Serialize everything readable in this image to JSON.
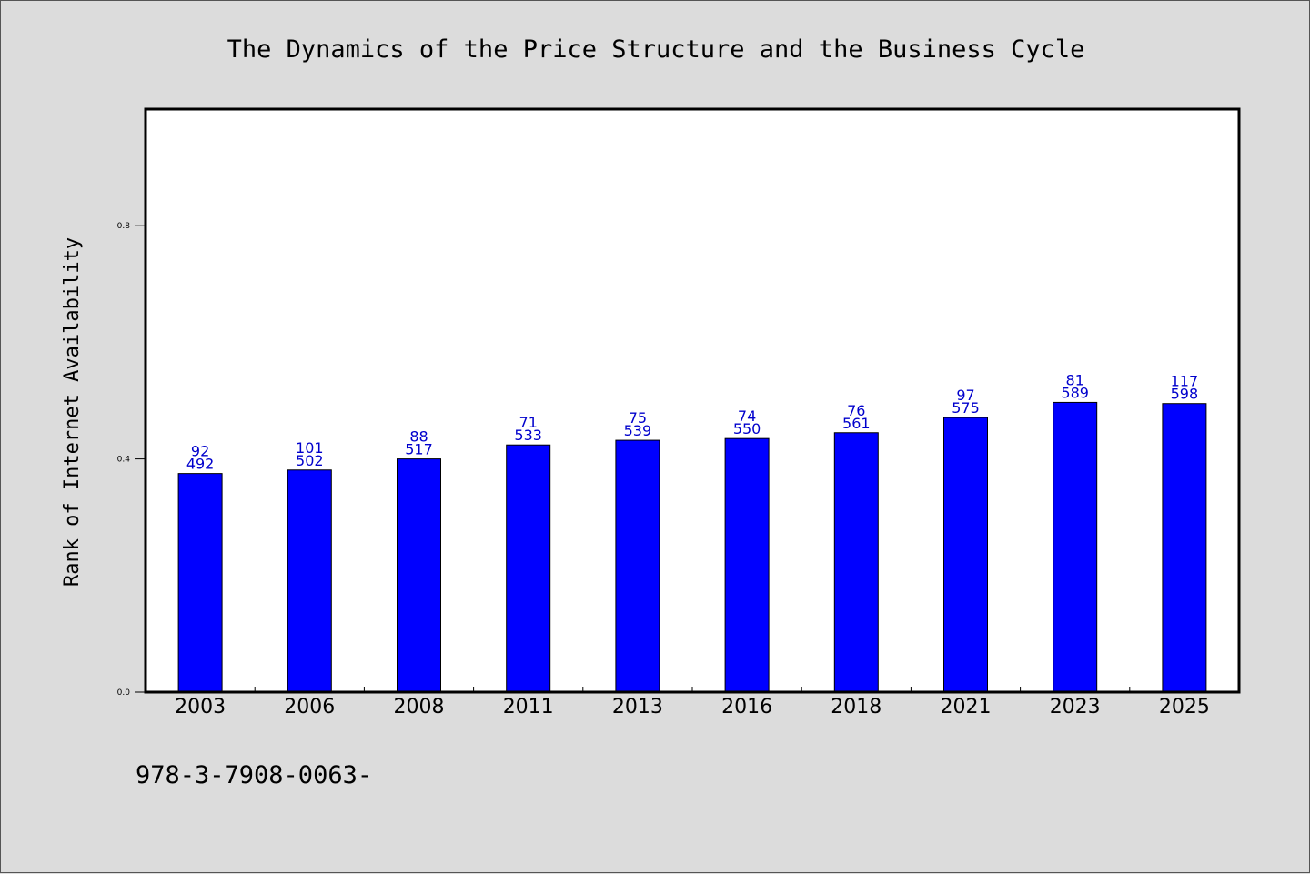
{
  "footer_code": "978-3-7908-0063-",
  "colors": {
    "bar": "#0000ff",
    "label": "#0000cc",
    "background": "#dcdcdc",
    "plot": "#ffffff"
  },
  "chart_data": {
    "type": "bar",
    "title": "The Dynamics of the Price Structure and the Business Cycle",
    "xlabel": "",
    "ylabel": "Rank of Internet Availability",
    "ylim": [
      0.0,
      1.0
    ],
    "yticks": [
      0.0,
      0.4,
      0.8
    ],
    "categories": [
      "2003",
      "2006",
      "2008",
      "2011",
      "2013",
      "2016",
      "2018",
      "2021",
      "2023",
      "2025"
    ],
    "values": [
      0.375,
      0.381,
      0.4,
      0.424,
      0.432,
      0.435,
      0.445,
      0.471,
      0.497,
      0.495
    ],
    "labels_top": [
      "92",
      "101",
      "88",
      "71",
      "75",
      "74",
      "76",
      "97",
      "81",
      "117"
    ],
    "labels_bottom": [
      "492",
      "502",
      "517",
      "533",
      "539",
      "550",
      "561",
      "575",
      "589",
      "598"
    ],
    "grid": false,
    "legend": "none"
  }
}
